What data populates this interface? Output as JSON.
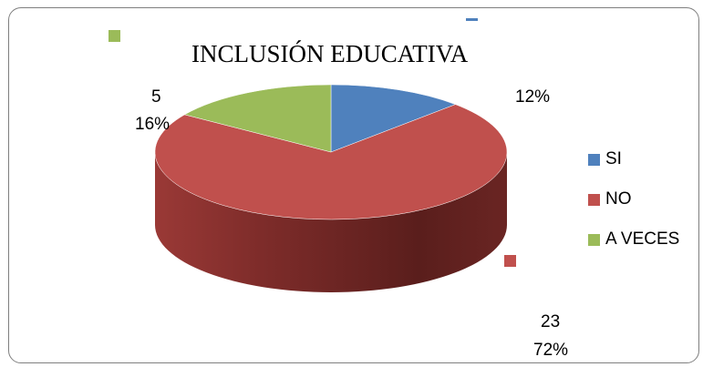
{
  "chart_data": {
    "type": "pie",
    "title": "INCLUSIÓN EDUCATIVA",
    "categories": [
      "SI",
      "NO",
      "A VECES"
    ],
    "values": [
      4,
      23,
      5
    ],
    "percent_labels": [
      "12%",
      "72%",
      "16%"
    ],
    "count_labels": [
      "",
      "23",
      "5"
    ],
    "colors": [
      "#4f81bd",
      "#c0504d",
      "#9bbb59"
    ],
    "legend_position": "right",
    "three_d": true
  }
}
